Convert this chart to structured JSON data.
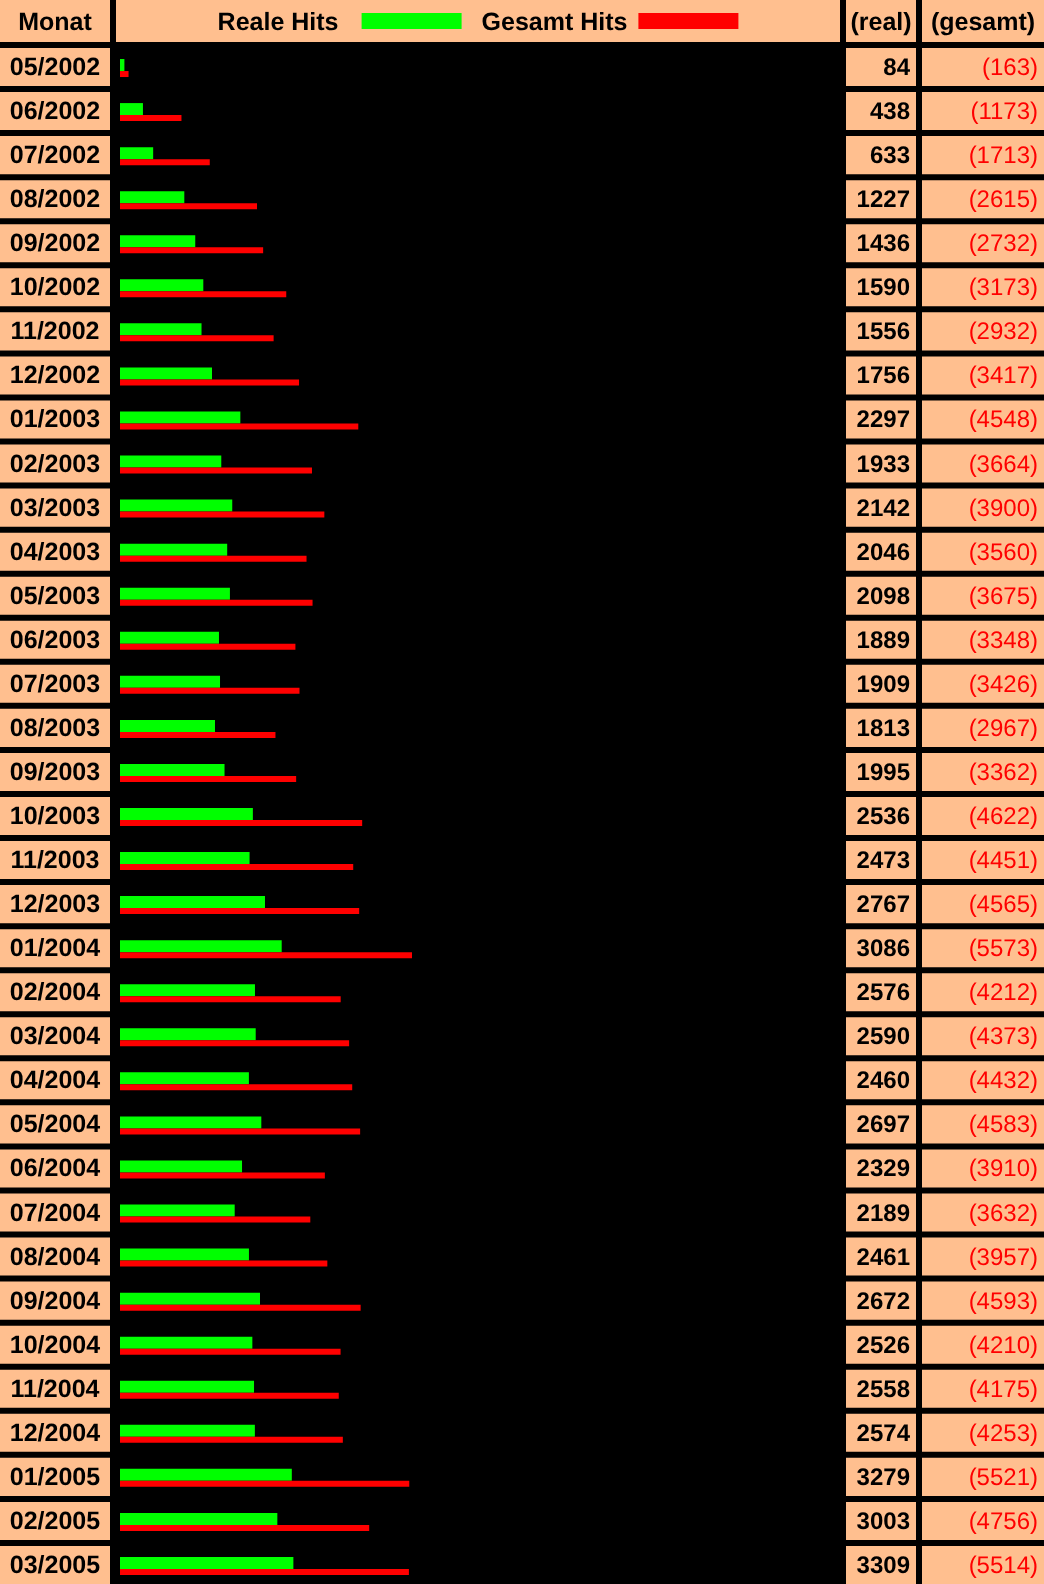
{
  "chart_data": {
    "type": "bar",
    "orientation": "horizontal",
    "ylabel": "Monat",
    "legend": "top",
    "tick_labels": "y",
    "annotations": [
      "(real)",
      "(gesamt)"
    ],
    "categories": [
      "05/2002",
      "06/2002",
      "07/2002",
      "08/2002",
      "09/2002",
      "10/2002",
      "11/2002",
      "12/2002",
      "01/2003",
      "02/2003",
      "03/2003",
      "04/2003",
      "05/2003",
      "06/2003",
      "07/2003",
      "08/2003",
      "09/2003",
      "10/2003",
      "11/2003",
      "12/2003",
      "01/2004",
      "02/2004",
      "03/2004",
      "04/2004",
      "05/2004",
      "06/2004",
      "07/2004",
      "08/2004",
      "09/2004",
      "10/2004",
      "11/2004",
      "12/2004",
      "01/2005",
      "02/2005",
      "03/2005"
    ],
    "series": [
      {
        "name": "Reale Hits",
        "color": "#00ff00",
        "values": [
          84,
          438,
          633,
          1227,
          1436,
          1590,
          1556,
          1756,
          2297,
          1933,
          2142,
          2046,
          2098,
          1889,
          1909,
          1813,
          1995,
          2536,
          2473,
          2767,
          3086,
          2576,
          2590,
          2460,
          2697,
          2329,
          2189,
          2461,
          2672,
          2526,
          2558,
          2574,
          3279,
          3003,
          3309
        ],
        "value_labels": [
          "84",
          "438",
          "633",
          "1227",
          "1436",
          "1590",
          "1556",
          "1756",
          "2297",
          "1933",
          "2142",
          "2046",
          "2098",
          "1889",
          "1909",
          "1813",
          "1995",
          "2536",
          "2473",
          "2767",
          "3086",
          "2576",
          "2590",
          "2460",
          "2697",
          "2329",
          "2189",
          "2461",
          "2672",
          "2526",
          "2558",
          "2574",
          "3279",
          "3003",
          "3309"
        ]
      },
      {
        "name": "Gesamt Hits",
        "color": "#ff0000",
        "values": [
          163,
          1173,
          1713,
          2615,
          2732,
          3173,
          2932,
          3417,
          4548,
          3664,
          3900,
          3560,
          3675,
          3348,
          3426,
          2967,
          3362,
          4622,
          4451,
          4565,
          5573,
          4212,
          4373,
          4432,
          4583,
          3910,
          3632,
          3957,
          4593,
          4210,
          4175,
          4253,
          5521,
          4756,
          5514
        ],
        "value_labels": [
          "(163)",
          "(1173)",
          "(1713)",
          "(2615)",
          "(2732)",
          "(3173)",
          "(2932)",
          "(3417)",
          "(4548)",
          "(3664)",
          "(3900)",
          "(3560)",
          "(3675)",
          "(3348)",
          "(3426)",
          "(2967)",
          "(3362)",
          "(4622)",
          "(4451)",
          "(4565)",
          "(5573)",
          "(4212)",
          "(4373)",
          "(4432)",
          "(4583)",
          "(3910)",
          "(3632)",
          "(3957)",
          "(4593)",
          "(4210)",
          "(4175)",
          "(4253)",
          "(5521)",
          "(4756)",
          "(5514)"
        ]
      }
    ]
  }
}
